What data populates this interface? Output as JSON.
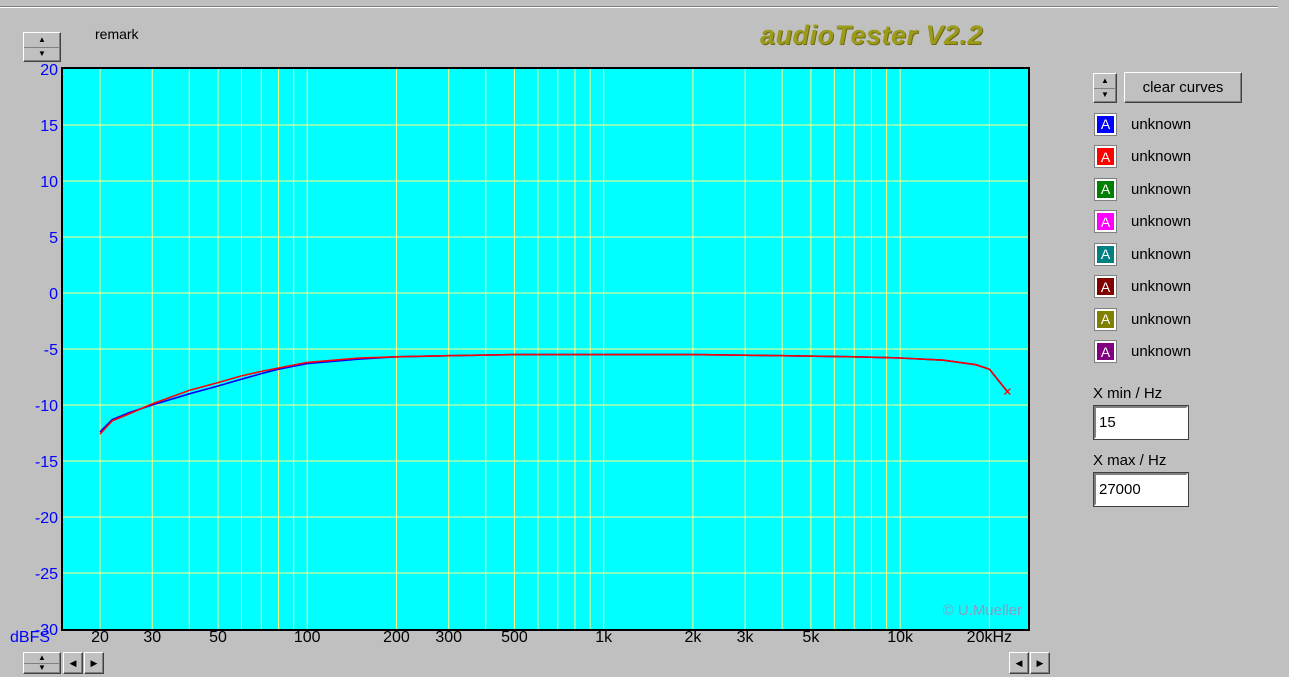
{
  "app_title": "audioTester V2.2",
  "remark_label": "remark",
  "clear_curves_label": "clear curves",
  "watermark": "© U.Mueller",
  "legend": [
    {
      "letter": "A",
      "label": "unknown",
      "color": "#0000ff"
    },
    {
      "letter": "A",
      "label": "unknown",
      "color": "#ff0000"
    },
    {
      "letter": "A",
      "label": "unknown",
      "color": "#008000"
    },
    {
      "letter": "A",
      "label": "unknown",
      "color": "#ff00ff"
    },
    {
      "letter": "A",
      "label": "unknown",
      "color": "#008080"
    },
    {
      "letter": "A",
      "label": "unknown",
      "color": "#800000"
    },
    {
      "letter": "A",
      "label": "unknown",
      "color": "#808000"
    },
    {
      "letter": "A",
      "label": "unknown",
      "color": "#800080"
    }
  ],
  "x_min_label": "X min / Hz",
  "x_min_value": "15",
  "x_max_label": "X max / Hz",
  "x_max_value": "27000",
  "chart_data": {
    "type": "line",
    "xscale": "log",
    "xlim": [
      15,
      27000
    ],
    "ylim": [
      -30,
      20
    ],
    "ylabel": "dBFS",
    "grid": true,
    "background": "#00ffff",
    "grid_color": "#ffff80",
    "y_ticks": [
      20,
      15,
      10,
      5,
      0,
      -5,
      -10,
      -15,
      -20,
      -25,
      -30
    ],
    "x_tick_labels": [
      {
        "value": 20,
        "label": "20"
      },
      {
        "value": 30,
        "label": "30"
      },
      {
        "value": 50,
        "label": "50"
      },
      {
        "value": 100,
        "label": "100"
      },
      {
        "value": 200,
        "label": "200"
      },
      {
        "value": 300,
        "label": "300"
      },
      {
        "value": 500,
        "label": "500"
      },
      {
        "value": 1000,
        "label": "1k"
      },
      {
        "value": 2000,
        "label": "2k"
      },
      {
        "value": 3000,
        "label": "3k"
      },
      {
        "value": 5000,
        "label": "5k"
      },
      {
        "value": 10000,
        "label": "10k"
      },
      {
        "value": 20000,
        "label": "20kHz"
      }
    ],
    "series": [
      {
        "color": "#0000ff",
        "points": [
          [
            20,
            -12.4
          ],
          [
            22,
            -11.3
          ],
          [
            25,
            -10.7
          ],
          [
            30,
            -10.0
          ],
          [
            40,
            -9.0
          ],
          [
            50,
            -8.3
          ],
          [
            60,
            -7.7
          ],
          [
            70,
            -7.2
          ],
          [
            80,
            -6.8
          ],
          [
            100,
            -6.3
          ],
          [
            150,
            -5.9
          ],
          [
            200,
            -5.7
          ],
          [
            300,
            -5.6
          ],
          [
            500,
            -5.5
          ],
          [
            1000,
            -5.5
          ],
          [
            2000,
            -5.5
          ],
          [
            4000,
            -5.6
          ],
          [
            7000,
            -5.7
          ],
          [
            10000,
            -5.8
          ],
          [
            14000,
            -6.0
          ],
          [
            18000,
            -6.4
          ],
          [
            20000,
            -6.8
          ],
          [
            23000,
            -8.8
          ]
        ]
      },
      {
        "color": "#ff0000",
        "points": [
          [
            20,
            -12.6
          ],
          [
            22,
            -11.4
          ],
          [
            25,
            -10.8
          ],
          [
            30,
            -9.9
          ],
          [
            40,
            -8.7
          ],
          [
            50,
            -8.0
          ],
          [
            60,
            -7.4
          ],
          [
            70,
            -7.0
          ],
          [
            80,
            -6.7
          ],
          [
            100,
            -6.2
          ],
          [
            150,
            -5.8
          ],
          [
            200,
            -5.7
          ],
          [
            300,
            -5.6
          ],
          [
            500,
            -5.5
          ],
          [
            1000,
            -5.5
          ],
          [
            2000,
            -5.5
          ],
          [
            4000,
            -5.6
          ],
          [
            7000,
            -5.7
          ],
          [
            10000,
            -5.8
          ],
          [
            14000,
            -6.0
          ],
          [
            18000,
            -6.4
          ],
          [
            20000,
            -6.8
          ],
          [
            23000,
            -8.8
          ]
        ]
      }
    ]
  }
}
